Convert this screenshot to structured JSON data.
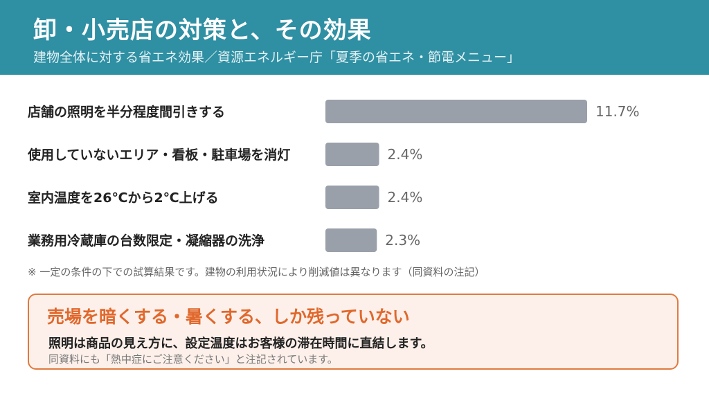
{
  "header": {
    "title": "卸・小売店の対策と、その効果",
    "subtitle": "建物全体に対する省エネ効果／資源エネルギー庁「夏季の省エネ・節電メニュー」"
  },
  "chart_data": {
    "type": "bar",
    "orientation": "horizontal",
    "categories": [
      "店舗の照明を半分程度間引きする",
      "使用していないエリア・看板・駐車場を消灯",
      "室内温度を26℃から2℃上げる",
      "業務用冷蔵庫の台数限定・凝縮器の洗浄"
    ],
    "values": [
      11.7,
      2.4,
      2.4,
      2.3
    ],
    "value_labels": [
      "11.7%",
      "2.4%",
      "2.4%",
      "2.3%"
    ],
    "unit": "%",
    "bar_color": "#9aa0aa",
    "xlim": [
      0,
      11.7
    ],
    "grid": false,
    "legend": "none"
  },
  "note": "※ 一定の条件の下での試算結果です。建物の利用状況により削減値は異なります（同資料の注記）",
  "callout": {
    "title": "売場を暗くする・暑くする、しか残っていない",
    "body": "照明は商品の見え方に、設定温度はお客様の滞在時間に直結します。",
    "sub": "同資料にも「熱中症にご注意ください」と注記されています。",
    "border_color": "#e07a3f",
    "title_color": "#e0682c"
  }
}
